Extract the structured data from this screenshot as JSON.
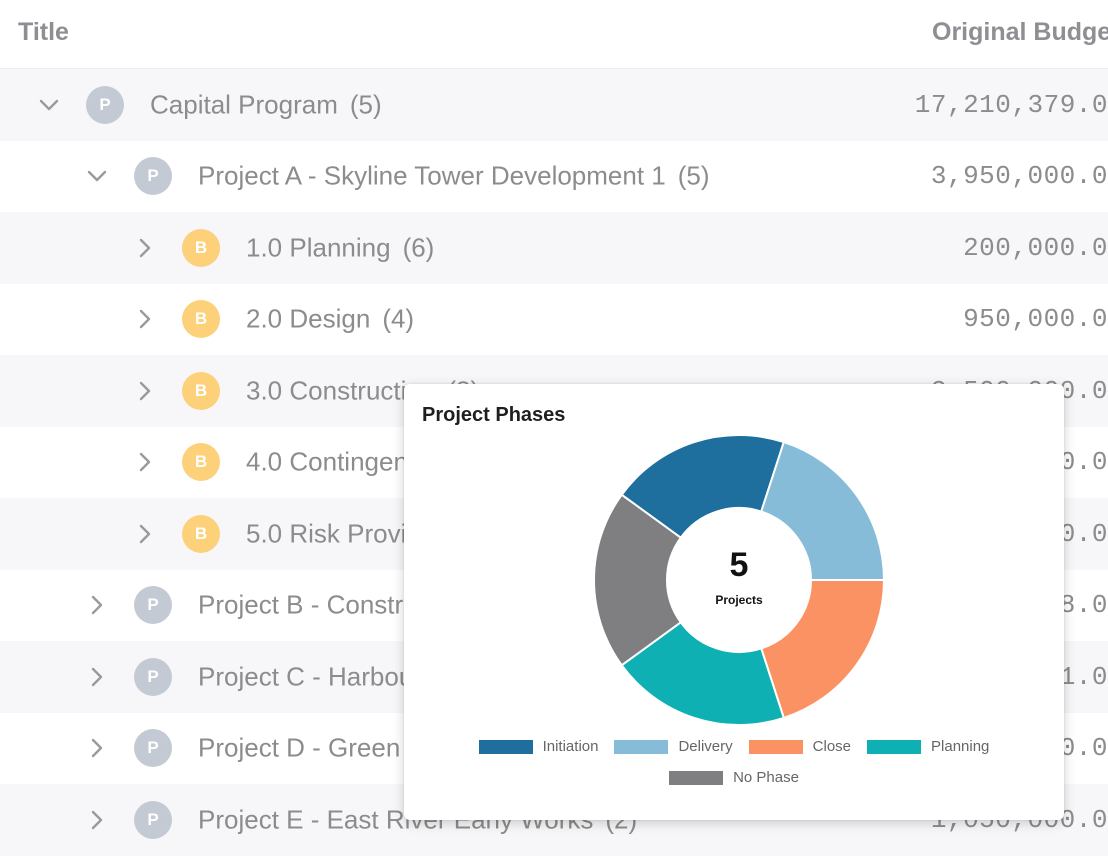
{
  "table": {
    "columns": {
      "title": "Title",
      "budget": "Original Budge"
    },
    "rows": [
      {
        "label": "Capital Program",
        "count": "(5)",
        "amount": "17,210,379.0",
        "badge": "P",
        "chevron": "down"
      },
      {
        "label": "Project A - Skyline Tower Development 1",
        "count": "(5)",
        "amount": "3,950,000.0",
        "badge": "P",
        "chevron": "down"
      },
      {
        "label": "1.0 Planning",
        "count": "(6)",
        "amount": "200,000.0",
        "badge": "B",
        "chevron": "right"
      },
      {
        "label": "2.0 Design",
        "count": "(4)",
        "amount": "950,000.0",
        "badge": "B",
        "chevron": "right"
      },
      {
        "label": "3.0 Construction",
        "count": "(8)",
        "amount": "2,500,000.0",
        "badge": "B",
        "chevron": "right"
      },
      {
        "label": "4.0 Contingency",
        "count": "",
        "amount": "0.0",
        "badge": "B",
        "chevron": "right"
      },
      {
        "label": "5.0 Risk Provision",
        "count": "",
        "amount": "0.0",
        "badge": "B",
        "chevron": "right"
      },
      {
        "label": "Project B - Construction",
        "count": "",
        "amount": "8.0",
        "badge": "P",
        "chevron": "right"
      },
      {
        "label": "Project C - Harbour",
        "count": "",
        "amount": "1.0",
        "badge": "P",
        "chevron": "right"
      },
      {
        "label": "Project D - Green",
        "count": "",
        "amount": "0.0",
        "badge": "P",
        "chevron": "right"
      },
      {
        "label": "Project E - East River Early Works",
        "count": "(2)",
        "amount": "1,050,000.0",
        "badge": "P",
        "chevron": "right"
      }
    ]
  },
  "popup": {
    "title": "Project Phases",
    "center_value": "5",
    "center_label": "Projects"
  },
  "chart_data": {
    "type": "pie",
    "title": "Project Phases",
    "hole": true,
    "categories": [
      "Initiation",
      "Delivery",
      "Close",
      "Planning",
      "No Phase"
    ],
    "values": [
      1,
      1,
      1,
      1,
      1
    ],
    "colors": [
      "#1f6f9e",
      "#86bcd8",
      "#fb9263",
      "#0fb0b3",
      "#7f7f82"
    ],
    "legend": "bottom"
  },
  "colors": {
    "badge_project": "#c4cad4",
    "badge_budget": "#fcd17a",
    "row_alt": "#f7f7f9"
  }
}
